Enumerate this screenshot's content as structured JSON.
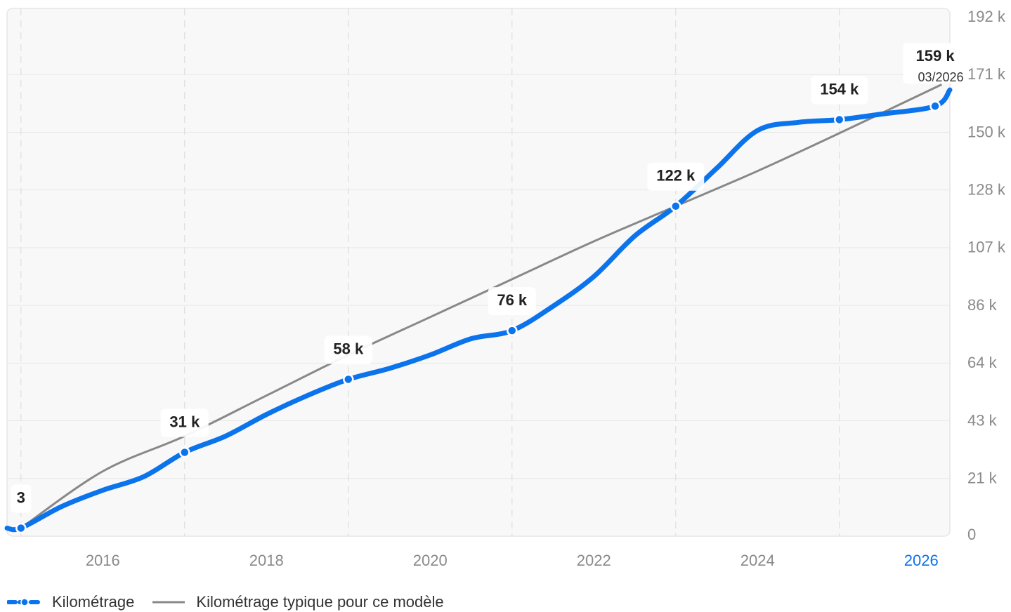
{
  "chart_data": {
    "type": "line",
    "x_ticks": [
      "2016",
      "2018",
      "2020",
      "2022",
      "2024",
      "2026"
    ],
    "highlight_tick": "2026",
    "y_ticks": [
      "0",
      "21 k",
      "43 k",
      "64 k",
      "86 k",
      "107 k",
      "128 k",
      "150 k",
      "171 k",
      "192 k"
    ],
    "ylim": [
      0,
      192
    ],
    "xlim": [
      2014.83,
      2026.35
    ],
    "grid": true,
    "legend_position": "bottom-left",
    "series": [
      {
        "name": "Kilométrage",
        "color": "#0b73eb",
        "points": [
          {
            "x": 2015.0,
            "y": 3,
            "label": "3"
          },
          {
            "x": 2017.0,
            "y": 31,
            "label": "31 k"
          },
          {
            "x": 2019.0,
            "y": 58,
            "label": "58 k"
          },
          {
            "x": 2021.0,
            "y": 76,
            "label": "76 k"
          },
          {
            "x": 2023.0,
            "y": 122,
            "label": "122 k"
          },
          {
            "x": 2025.0,
            "y": 154,
            "label": "154 k"
          },
          {
            "x": 2026.17,
            "y": 159,
            "label": "159 k",
            "sublabel": "03/2026"
          }
        ],
        "path": [
          [
            2014.83,
            3
          ],
          [
            2015.0,
            3
          ],
          [
            2015.5,
            11
          ],
          [
            2016.0,
            17
          ],
          [
            2016.5,
            22
          ],
          [
            2017.0,
            31
          ],
          [
            2017.5,
            37
          ],
          [
            2018.0,
            45
          ],
          [
            2018.5,
            52
          ],
          [
            2019.0,
            58
          ],
          [
            2019.5,
            62
          ],
          [
            2020.0,
            67
          ],
          [
            2020.5,
            73
          ],
          [
            2021.0,
            76
          ],
          [
            2021.5,
            85
          ],
          [
            2022.0,
            96
          ],
          [
            2022.5,
            111
          ],
          [
            2023.0,
            122
          ],
          [
            2023.5,
            136
          ],
          [
            2024.0,
            150
          ],
          [
            2024.5,
            153
          ],
          [
            2025.0,
            154
          ],
          [
            2025.5,
            156
          ],
          [
            2026.17,
            159
          ],
          [
            2026.35,
            165
          ]
        ]
      },
      {
        "name": "Kilométrage typique pour ce modèle",
        "color": "#888888",
        "path": [
          [
            2015.0,
            3
          ],
          [
            2016.0,
            24
          ],
          [
            2017.0,
            37
          ],
          [
            2018.0,
            52
          ],
          [
            2019.0,
            67
          ],
          [
            2020.0,
            81
          ],
          [
            2021.0,
            95
          ],
          [
            2022.0,
            109
          ],
          [
            2023.0,
            122
          ],
          [
            2024.0,
            135
          ],
          [
            2025.0,
            149
          ],
          [
            2026.25,
            167
          ]
        ]
      }
    ]
  }
}
